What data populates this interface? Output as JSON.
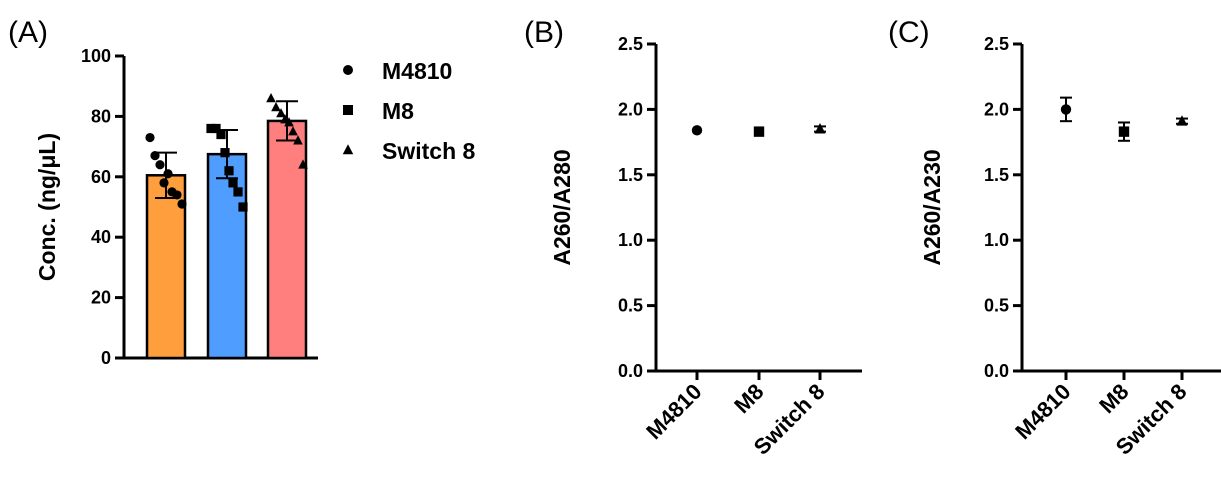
{
  "panels": [
    {
      "label": "(A)",
      "chart_data": {
        "type": "bar",
        "categories": [
          "M4810",
          "M8",
          "Switch 8"
        ],
        "values": [
          60.5,
          67.5,
          78.5
        ],
        "errors": [
          7.5,
          8.0,
          6.5
        ],
        "colors": [
          "#ff9e3d",
          "#4f9dff",
          "#ff7f7f"
        ],
        "markers": [
          "circle",
          "square",
          "triangle"
        ],
        "points": [
          [
            73,
            67,
            64,
            58,
            61,
            55,
            54,
            51
          ],
          [
            76,
            76,
            74,
            68,
            62,
            58,
            55,
            50
          ],
          [
            86,
            83,
            81,
            79,
            78,
            75,
            72,
            64
          ]
        ],
        "ylabel": "Conc. (ng/μL)",
        "ylim": [
          0,
          100
        ],
        "yticks": [
          "0",
          "20",
          "40",
          "60",
          "80",
          "100"
        ],
        "legend": {
          "position": "right",
          "entries": [
            {
              "name": "M4810",
              "marker": "circle"
            },
            {
              "name": "M8",
              "marker": "square"
            },
            {
              "name": "Switch 8",
              "marker": "triangle"
            }
          ]
        }
      }
    },
    {
      "label": "(B)",
      "chart_data": {
        "type": "scatter",
        "categories": [
          "M4810",
          "M8",
          "Switch 8"
        ],
        "values": [
          1.84,
          1.83,
          1.85
        ],
        "errors": [
          0.01,
          0.01,
          0.02
        ],
        "markers": [
          "circle",
          "square",
          "triangle"
        ],
        "ylabel": "A260/A280",
        "ylim": [
          0,
          2.5
        ],
        "yticks": [
          "0.0",
          "0.5",
          "1.0",
          "1.5",
          "2.0",
          "2.5"
        ]
      }
    },
    {
      "label": "(C)",
      "chart_data": {
        "type": "scatter",
        "categories": [
          "M4810",
          "M8",
          "Switch 8"
        ],
        "values": [
          2.0,
          1.83,
          1.91
        ],
        "errors": [
          0.09,
          0.07,
          0.02
        ],
        "markers": [
          "circle",
          "square",
          "triangle"
        ],
        "ylabel": "A260/A230",
        "ylim": [
          0,
          2.5
        ],
        "yticks": [
          "0.0",
          "0.5",
          "1.0",
          "1.5",
          "2.0",
          "2.5"
        ]
      }
    }
  ]
}
